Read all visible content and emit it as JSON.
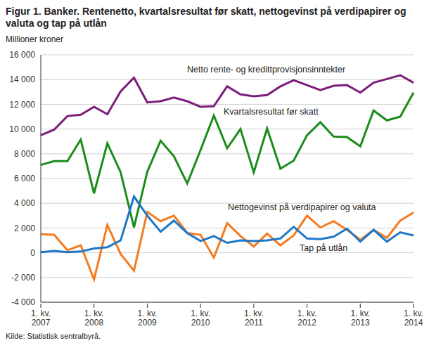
{
  "chart_data": {
    "type": "line",
    "title": "Figur 1. Banker. Rentenetto, kvartalsresultat før skatt, nettogevinst på verdipapirer og valuta og tap på utlån",
    "y_label": "Millioner kroner",
    "source": "Kilde: Statistisk sentralbyrå.",
    "categories": [
      "1. kv.\n2007",
      null,
      null,
      null,
      "1. kv.\n2008",
      null,
      null,
      null,
      "1. kv.\n2009",
      null,
      null,
      null,
      "1. kv.\n2010",
      null,
      null,
      null,
      "1. kv.\n2011",
      null,
      null,
      null,
      "1. kv.\n2012",
      null,
      null,
      null,
      "1. kv.\n2013",
      null,
      null,
      null,
      "1. kv.\n2014"
    ],
    "series": [
      {
        "name": "Netto rente- og kredittprovisjonsinntekter",
        "color": "#7b1e7a",
        "values": [
          9500,
          9950,
          11050,
          11150,
          11800,
          11200,
          13050,
          14150,
          12150,
          12250,
          12550,
          12250,
          11800,
          11850,
          13450,
          12800,
          12650,
          12750,
          13450,
          13950,
          13550,
          13150,
          13500,
          13550,
          12950,
          13750,
          14050,
          14350,
          13750
        ]
      },
      {
        "name": "Kvartalsresultat før skatt",
        "color": "#1a8c1a",
        "values": [
          7100,
          7400,
          7400,
          9150,
          4800,
          8850,
          6500,
          2050,
          6550,
          9050,
          7800,
          5600,
          8300,
          11100,
          8450,
          10000,
          6500,
          10050,
          6800,
          7450,
          9500,
          10550,
          9400,
          9350,
          8600,
          11500,
          10700,
          11000,
          12950
        ]
      },
      {
        "name": "Nettogevinst på verdipapirer og valuta",
        "color": "#f47b20",
        "values": [
          1500,
          1450,
          200,
          600,
          -2150,
          2250,
          -100,
          -1450,
          3300,
          2550,
          3000,
          1600,
          1450,
          -400,
          2400,
          1350,
          500,
          1550,
          600,
          1400,
          3000,
          2050,
          2550,
          1850,
          1050,
          1850,
          1200,
          2600,
          3250
        ]
      },
      {
        "name": "Tap på utlån",
        "color": "#1e78c8",
        "values": [
          50,
          150,
          50,
          100,
          350,
          450,
          1000,
          4550,
          3000,
          1700,
          2600,
          1600,
          950,
          1350,
          800,
          1000,
          950,
          1000,
          1150,
          2100,
          1150,
          1100,
          1300,
          1950,
          900,
          1850,
          900,
          1650,
          1400
        ]
      }
    ],
    "ylim": [
      -4000,
      16000
    ],
    "yticks": [
      {
        "value": -4000,
        "label": "-4 000"
      },
      {
        "value": -2000,
        "label": "-2 000"
      },
      0,
      {
        "value": 2000,
        "label": "2 000"
      },
      {
        "value": 4000,
        "label": "4 000"
      },
      {
        "value": 6000,
        "label": "6 000"
      },
      {
        "value": 8000,
        "label": "8 000"
      },
      {
        "value": 10000,
        "label": "10 000"
      },
      {
        "value": 12000,
        "label": "12 000"
      },
      {
        "value": 14000,
        "label": "14 000"
      },
      {
        "value": 16000,
        "label": "16 000"
      }
    ],
    "grid": true
  }
}
